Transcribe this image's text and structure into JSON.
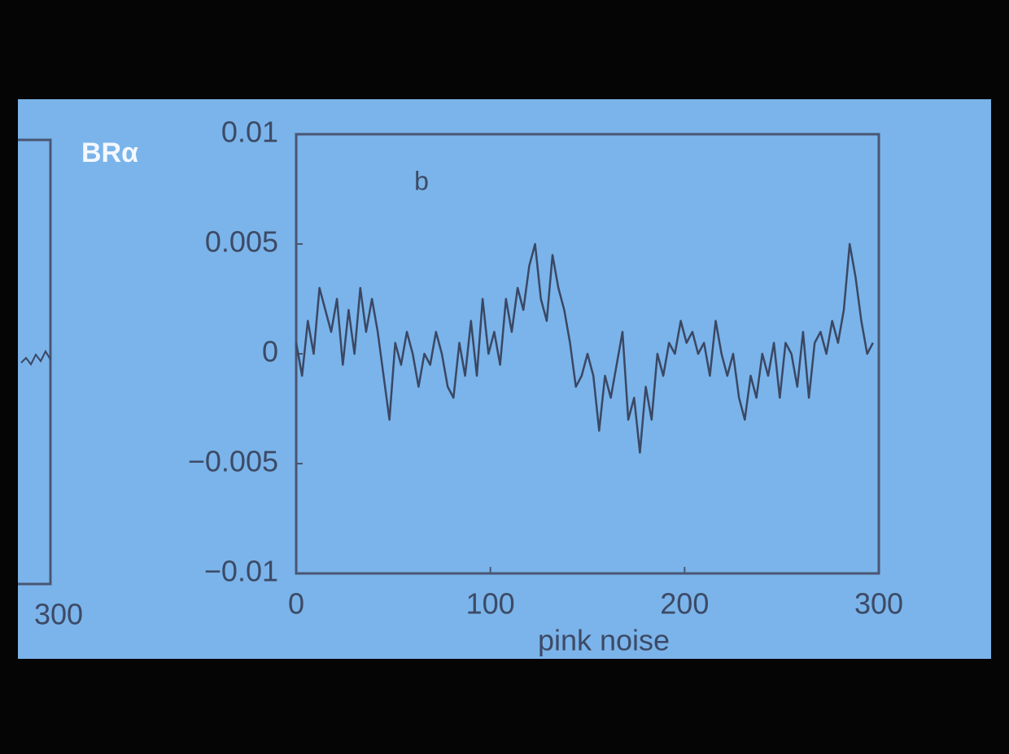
{
  "channel_logo": "BRα",
  "chart_data": [
    {
      "type": "line",
      "annotation": "b",
      "xlabel": "pink noise",
      "color": "#3b4763",
      "xlim": [
        0,
        300
      ],
      "xticks": [
        0,
        100,
        200,
        300
      ],
      "ylim": [
        -0.01,
        0.01
      ],
      "yticks": [
        0.01,
        0.005,
        0,
        {
          "value": -0.005,
          "label": "−0.005"
        },
        {
          "value": -0.01,
          "label": "−0.01"
        }
      ],
      "x": [
        0,
        3,
        6,
        9,
        12,
        15,
        18,
        21,
        24,
        27,
        30,
        33,
        36,
        39,
        42,
        45,
        48,
        51,
        54,
        57,
        60,
        63,
        66,
        69,
        72,
        75,
        78,
        81,
        84,
        87,
        90,
        93,
        96,
        99,
        102,
        105,
        108,
        111,
        114,
        117,
        120,
        123,
        126,
        129,
        132,
        135,
        138,
        141,
        144,
        147,
        150,
        153,
        156,
        159,
        162,
        165,
        168,
        171,
        174,
        177,
        180,
        183,
        186,
        189,
        192,
        195,
        198,
        201,
        204,
        207,
        210,
        213,
        216,
        219,
        222,
        225,
        228,
        231,
        234,
        237,
        240,
        243,
        246,
        249,
        252,
        255,
        258,
        261,
        264,
        267,
        270,
        273,
        276,
        279,
        282,
        285,
        288,
        291,
        294,
        297
      ],
      "values": [
        0.0005,
        -0.001,
        0.0015,
        0,
        0.003,
        0.002,
        0.001,
        0.0025,
        -0.0005,
        0.002,
        0,
        0.003,
        0.001,
        0.0025,
        0.001,
        -0.001,
        -0.003,
        0.0005,
        -0.0005,
        0.001,
        0,
        -0.0015,
        0,
        -0.0005,
        0.001,
        0,
        -0.0015,
        -0.002,
        0.0005,
        -0.001,
        0.0015,
        -0.001,
        0.0025,
        0,
        0.001,
        -0.0005,
        0.0025,
        0.001,
        0.003,
        0.002,
        0.004,
        0.005,
        0.0025,
        0.0015,
        0.0045,
        0.003,
        0.002,
        0.0005,
        -0.0015,
        -0.001,
        0,
        -0.001,
        -0.0035,
        -0.001,
        -0.002,
        -0.0005,
        0.001,
        -0.003,
        -0.002,
        -0.0045,
        -0.0015,
        -0.003,
        0,
        -0.001,
        0.0005,
        0,
        0.0015,
        0.0005,
        0.001,
        0,
        0.0005,
        -0.001,
        0.0015,
        0,
        -0.001,
        0,
        -0.002,
        -0.003,
        -0.001,
        -0.002,
        0,
        -0.001,
        0.0005,
        -0.002,
        0.0005,
        0,
        -0.0015,
        0.001,
        -0.002,
        0.0005,
        0.001,
        0,
        0.0015,
        0.0005,
        0.002,
        0.005,
        0.0035,
        0.0015,
        0,
        0.0005
      ]
    },
    {
      "type": "frame",
      "xlim": [
        0,
        300
      ],
      "xticks": [
        300
      ]
    }
  ]
}
